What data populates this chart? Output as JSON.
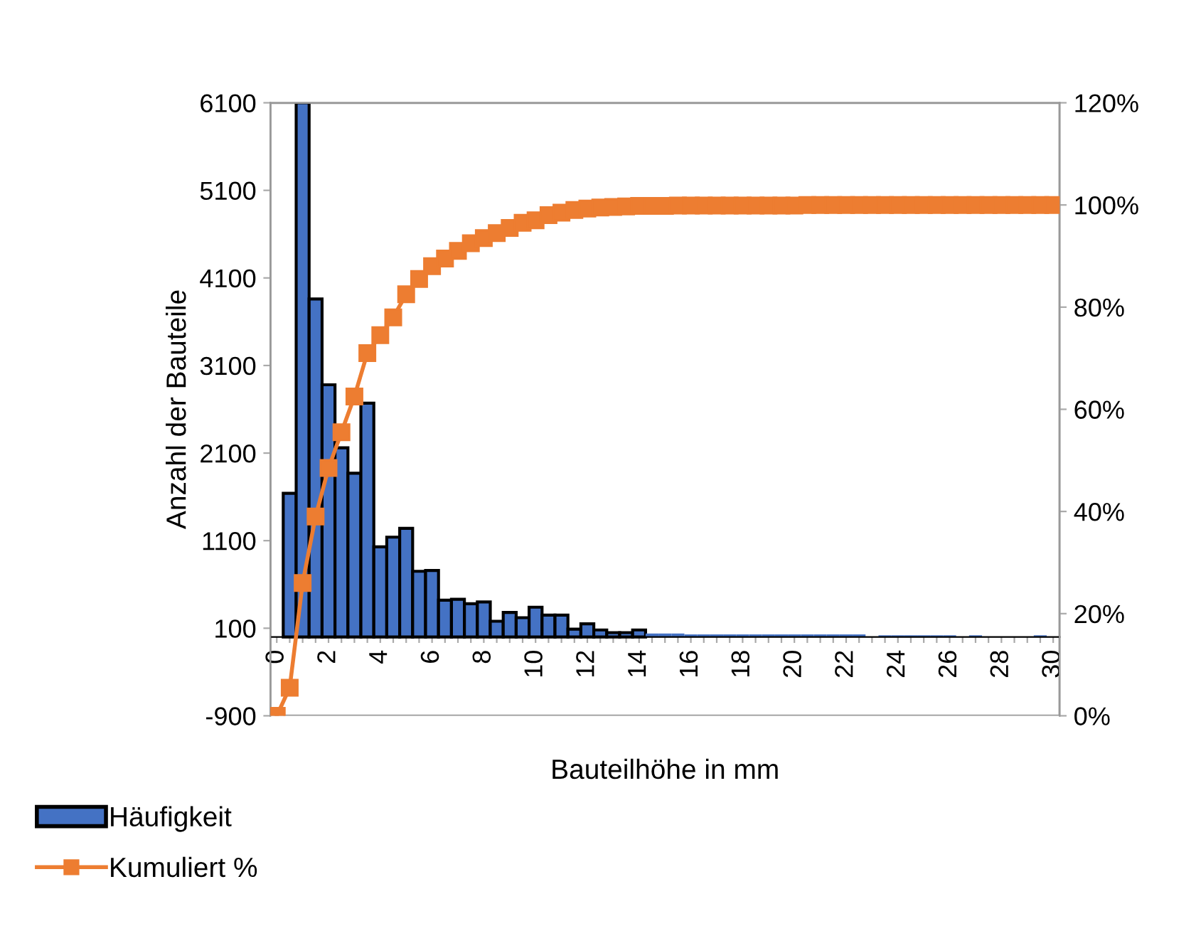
{
  "chart_data": {
    "type": "bar",
    "xlabel": "Bauteilhöhe in mm",
    "ylabel": "Anzahl der Bauteile",
    "categories": [
      "0",
      null,
      null,
      null,
      "2",
      null,
      null,
      null,
      "4",
      null,
      null,
      null,
      "6",
      null,
      null,
      null,
      "8",
      null,
      null,
      null,
      "10",
      null,
      null,
      null,
      "12",
      null,
      null,
      null,
      "14",
      null,
      null,
      null,
      "16",
      null,
      null,
      null,
      "18",
      null,
      null,
      null,
      "20",
      null,
      null,
      null,
      "22",
      null,
      null,
      null,
      "24",
      null,
      null,
      null,
      "26",
      null,
      null,
      null,
      "28",
      null,
      null,
      null,
      "30"
    ],
    "series": [
      {
        "name": "Häufigkeit",
        "color": "#4472c4",
        "values": [
          0,
          1640,
          6100,
          3860,
          2880,
          2160,
          1870,
          2670,
          1030,
          1140,
          1240,
          750,
          760,
          420,
          430,
          380,
          400,
          180,
          280,
          220,
          340,
          250,
          250,
          90,
          150,
          80,
          50,
          50,
          80,
          40,
          40,
          40,
          30,
          30,
          30,
          30,
          30,
          30,
          30,
          30,
          30,
          30,
          30,
          30,
          30,
          30,
          0,
          20,
          20,
          20,
          20,
          20,
          20,
          0,
          20,
          0,
          0,
          0,
          0,
          20,
          0
        ]
      },
      {
        "name": "Kumuliert %",
        "type": "line",
        "axis": "y2",
        "color": "#ed7d31",
        "marker": "square",
        "values": [
          0,
          5.5,
          26,
          39,
          48.5,
          55.5,
          62.5,
          71,
          74.5,
          78,
          82.5,
          85.5,
          88,
          89.5,
          91,
          92.5,
          93.5,
          94.5,
          95.5,
          96.5,
          97,
          98,
          98.5,
          99,
          99.3,
          99.5,
          99.6,
          99.7,
          99.8,
          99.8,
          99.8,
          99.9,
          99.9,
          99.9,
          99.9,
          99.9,
          99.9,
          99.9,
          99.9,
          99.9,
          99.9,
          100,
          100,
          100,
          100,
          100,
          100,
          100,
          100,
          100,
          100,
          100,
          100,
          100,
          100,
          100,
          100,
          100,
          100,
          100,
          100
        ]
      }
    ],
    "ylim": [
      -900,
      6100
    ],
    "yticks": [
      -900,
      100,
      1100,
      2100,
      3100,
      4100,
      5100,
      6100
    ],
    "y2lim": [
      0,
      120
    ],
    "y2ticks": [
      {
        "value": 0,
        "label": "0%"
      },
      {
        "value": 20,
        "label": "20%"
      },
      {
        "value": 40,
        "label": "40%"
      },
      {
        "value": 60,
        "label": "60%"
      },
      {
        "value": 80,
        "label": "80%"
      },
      {
        "value": 100,
        "label": "100%"
      },
      {
        "value": 120,
        "label": "120%"
      }
    ],
    "grid": false,
    "legend": "bottom left"
  }
}
